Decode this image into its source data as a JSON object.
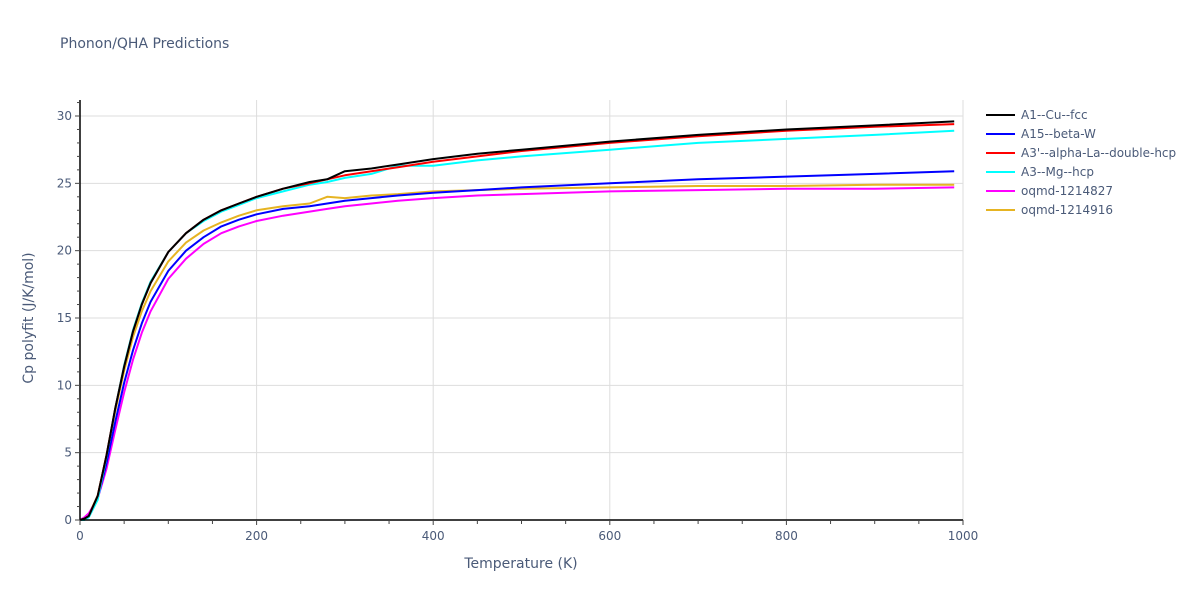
{
  "title": "Phonon/QHA Predictions",
  "chart_data": {
    "type": "line",
    "title": "Phonon/QHA Predictions",
    "xlabel": "Temperature (K)",
    "ylabel": "Cp polyfit (J/K/mol)",
    "xlim": [
      0,
      1000
    ],
    "ylim": [
      0,
      31
    ],
    "xticks": [
      0,
      200,
      400,
      600,
      800,
      1000
    ],
    "yticks": [
      0,
      5,
      10,
      15,
      20,
      25,
      30
    ],
    "grid": true,
    "legend_position": "right",
    "x": [
      0,
      5,
      10,
      20,
      30,
      40,
      50,
      60,
      70,
      80,
      100,
      120,
      140,
      160,
      180,
      200,
      230,
      260,
      280,
      300,
      330,
      360,
      400,
      450,
      500,
      600,
      700,
      800,
      900,
      990
    ],
    "series": [
      {
        "name": "A1--Cu--fcc",
        "color": "#000000",
        "values": [
          0,
          0.1,
          0.3,
          1.8,
          4.8,
          8.3,
          11.4,
          14.0,
          16.0,
          17.6,
          19.9,
          21.3,
          22.3,
          23.0,
          23.5,
          24.0,
          24.6,
          25.1,
          25.3,
          25.9,
          26.1,
          26.4,
          26.8,
          27.2,
          27.5,
          28.1,
          28.6,
          29.0,
          29.3,
          29.6
        ]
      },
      {
        "name": "A15--beta-W",
        "color": "#0000ff",
        "values": [
          0,
          0.1,
          0.3,
          1.6,
          4.2,
          7.3,
          10.2,
          12.6,
          14.6,
          16.2,
          18.5,
          20.0,
          21.0,
          21.8,
          22.3,
          22.7,
          23.1,
          23.3,
          23.5,
          23.7,
          23.9,
          24.1,
          24.3,
          24.5,
          24.7,
          25.0,
          25.3,
          25.5,
          25.7,
          25.9
        ]
      },
      {
        "name": "A3'--alpha-La--double-hcp",
        "color": "#ff0000",
        "values": [
          0,
          0.1,
          0.3,
          1.8,
          4.8,
          8.3,
          11.4,
          14.0,
          16.0,
          17.6,
          19.9,
          21.3,
          22.3,
          23.0,
          23.5,
          24.0,
          24.6,
          25.0,
          25.3,
          25.6,
          25.9,
          26.2,
          26.6,
          27.0,
          27.4,
          28.0,
          28.5,
          28.9,
          29.2,
          29.4
        ]
      },
      {
        "name": "A3--Mg--hcp",
        "color": "#00ffff",
        "values": [
          0,
          0.0,
          0.2,
          1.5,
          4.7,
          8.3,
          11.5,
          14.1,
          16.1,
          17.7,
          19.9,
          21.3,
          22.2,
          22.9,
          23.4,
          23.9,
          24.4,
          24.9,
          25.1,
          25.4,
          25.7,
          26.3,
          26.3,
          26.7,
          27.0,
          27.5,
          28.0,
          28.3,
          28.6,
          28.9
        ]
      },
      {
        "name": "oqmd-1214827",
        "color": "#ff00ff",
        "values": [
          0,
          0.2,
          0.5,
          1.6,
          3.8,
          6.7,
          9.5,
          11.9,
          13.9,
          15.5,
          17.9,
          19.4,
          20.5,
          21.3,
          21.8,
          22.2,
          22.6,
          22.9,
          23.1,
          23.3,
          23.5,
          23.7,
          23.9,
          24.1,
          24.2,
          24.4,
          24.5,
          24.6,
          24.6,
          24.7
        ]
      },
      {
        "name": "oqmd-1214916",
        "color": "#e6b422",
        "values": [
          0,
          0.1,
          0.4,
          1.8,
          4.8,
          8.1,
          11.1,
          13.6,
          15.5,
          17.0,
          19.2,
          20.6,
          21.5,
          22.1,
          22.6,
          23.0,
          23.3,
          23.5,
          24.0,
          23.9,
          24.1,
          24.2,
          24.4,
          24.5,
          24.6,
          24.7,
          24.8,
          24.8,
          24.9,
          24.9
        ]
      }
    ]
  },
  "legend": {
    "items": [
      {
        "label": "A1--Cu--fcc",
        "color": "#000000"
      },
      {
        "label": "A15--beta-W",
        "color": "#0000ff"
      },
      {
        "label": "A3'--alpha-La--double-hcp",
        "color": "#ff0000"
      },
      {
        "label": "A3--Mg--hcp",
        "color": "#00ffff"
      },
      {
        "label": "oqmd-1214827",
        "color": "#ff00ff"
      },
      {
        "label": "oqmd-1214916",
        "color": "#e6b422"
      }
    ]
  },
  "axes": {
    "x_title": "Temperature (K)",
    "y_title": "Cp polyfit (J/K/mol)",
    "x_tick_labels": [
      "0",
      "200",
      "400",
      "600",
      "800",
      "1000"
    ],
    "y_tick_labels": [
      "0",
      "5",
      "10",
      "15",
      "20",
      "25",
      "30"
    ]
  }
}
